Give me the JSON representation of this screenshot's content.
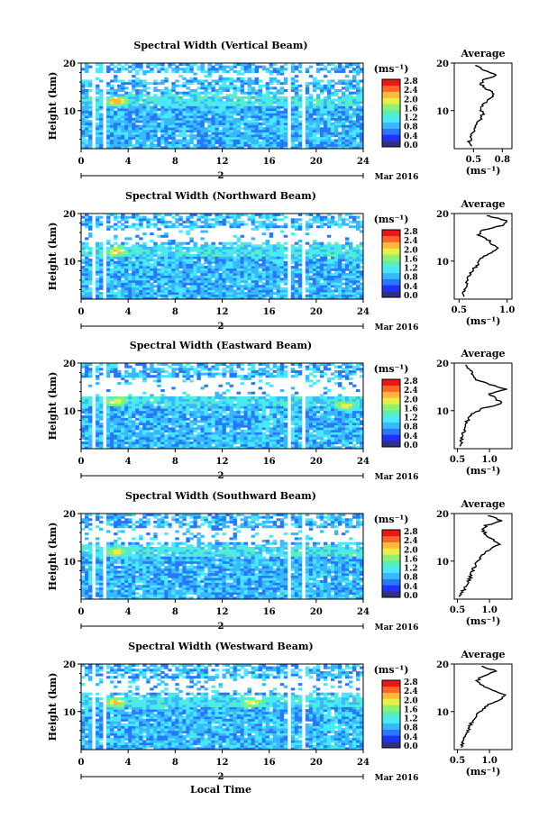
{
  "figure": {
    "date_label": "Mar 2016",
    "day_label": "2",
    "xlabel": "Local Time"
  },
  "colorbar": {
    "unit": "(ms⁻¹)",
    "ticks": [
      "0.0",
      "0.4",
      "0.8",
      "1.2",
      "1.6",
      "2.0",
      "2.4",
      "2.8"
    ],
    "colors": [
      "#303080",
      "#2030ff",
      "#2878ff",
      "#38b8ff",
      "#48e8ff",
      "#58f0b8",
      "#90f070",
      "#e8f048",
      "#ffb838",
      "#ff6428",
      "#e81818"
    ]
  },
  "chart_data": [
    {
      "type": "heatmap",
      "title": "Spectral Width (Vertical Beam)",
      "ylabel": "Height (km)",
      "xlim": [
        0,
        24
      ],
      "ylim": [
        2,
        20
      ],
      "xticks": [
        0,
        4,
        8,
        12,
        16,
        20,
        24
      ],
      "yticks": [
        10,
        20
      ],
      "gaps_hours": [
        [
          0.8,
          1.2
        ],
        [
          1.9,
          2.2
        ],
        [
          5.7,
          5.9
        ],
        [
          17.6,
          17.9
        ],
        [
          18.8,
          19.2
        ]
      ],
      "white_band_km": [
        16.5,
        18
      ],
      "hot_spots": [
        {
          "x": 3.0,
          "y": 12,
          "v": 2.6
        }
      ],
      "avg_profile": {
        "title": "Average",
        "xlabel": "(ms⁻¹)",
        "xlim": [
          0.3,
          0.9
        ],
        "xticks": [
          0.5,
          0.8
        ],
        "xtick_labels": [
          "0.5",
          "0.8"
        ],
        "ylim": [
          2,
          20
        ],
        "yticks": [
          10,
          20
        ],
        "heights": [
          2.5,
          3.5,
          4.5,
          5.5,
          6.5,
          7.5,
          8.5,
          9.5,
          10.5,
          11.5,
          12.5,
          13.5,
          14.5,
          15.5,
          16.5,
          17.5,
          18.5,
          19.5
        ],
        "values": [
          0.48,
          0.46,
          0.47,
          0.5,
          0.52,
          0.55,
          0.58,
          0.6,
          0.57,
          0.62,
          0.66,
          0.72,
          0.64,
          0.58,
          0.6,
          0.75,
          0.6,
          0.52
        ]
      }
    },
    {
      "type": "heatmap",
      "title": "Spectral Width (Northward Beam)",
      "ylabel": "Height (km)",
      "xlim": [
        0,
        24
      ],
      "ylim": [
        2,
        20
      ],
      "xticks": [
        0,
        4,
        8,
        12,
        16,
        20,
        24
      ],
      "yticks": [
        10,
        20
      ],
      "gaps_hours": [
        [
          0.8,
          1.2
        ],
        [
          1.9,
          2.2
        ],
        [
          5.7,
          5.9
        ],
        [
          17.6,
          17.9
        ],
        [
          18.8,
          19.2
        ]
      ],
      "white_band_km": [
        14,
        17
      ],
      "hot_spots": [
        {
          "x": 3.0,
          "y": 12,
          "v": 2.5
        }
      ],
      "avg_profile": {
        "title": "Average",
        "xlabel": "(ms⁻¹)",
        "xlim": [
          0.45,
          1.05
        ],
        "xticks": [
          0.5,
          1.0
        ],
        "xtick_labels": [
          "0.5",
          "1.0"
        ],
        "ylim": [
          2,
          20
        ],
        "yticks": [
          10,
          20
        ],
        "heights": [
          2.5,
          3.5,
          4.5,
          5.5,
          6.5,
          7.5,
          8.5,
          9.5,
          10.5,
          11.5,
          12.5,
          13.5,
          14.5,
          15.5,
          16.5,
          17.5,
          18.5,
          19.5
        ],
        "values": [
          0.55,
          0.54,
          0.56,
          0.58,
          0.6,
          0.62,
          0.66,
          0.7,
          0.72,
          0.8,
          0.9,
          0.85,
          0.8,
          0.7,
          0.75,
          0.95,
          1.0,
          0.8
        ]
      }
    },
    {
      "type": "heatmap",
      "title": "Spectral Width (Eastward Beam)",
      "ylabel": "Height (km)",
      "xlim": [
        0,
        24
      ],
      "ylim": [
        2,
        20
      ],
      "xticks": [
        0,
        4,
        8,
        12,
        16,
        20,
        24
      ],
      "yticks": [
        10,
        20
      ],
      "gaps_hours": [
        [
          0.8,
          1.2
        ],
        [
          1.9,
          2.2
        ],
        [
          5.7,
          5.9
        ],
        [
          17.6,
          17.9
        ],
        [
          18.8,
          19.2
        ]
      ],
      "white_band_km": [
        13,
        17
      ],
      "hot_spots": [
        {
          "x": 3.0,
          "y": 12,
          "v": 2.3
        },
        {
          "x": 22.5,
          "y": 11,
          "v": 2.2
        }
      ],
      "avg_profile": {
        "title": "Average",
        "xlabel": "(ms⁻¹)",
        "xlim": [
          0.45,
          1.35
        ],
        "xticks": [
          0.5,
          1.0
        ],
        "xtick_labels": [
          "0.5",
          "1.0"
        ],
        "ylim": [
          2,
          20
        ],
        "yticks": [
          10,
          20
        ],
        "heights": [
          2.5,
          3.5,
          4.5,
          5.5,
          6.5,
          7.5,
          8.5,
          9.5,
          10.5,
          11.5,
          12.5,
          13.5,
          14.5,
          15.5,
          16.5,
          17.5,
          18.5,
          19.5
        ],
        "values": [
          0.55,
          0.56,
          0.58,
          0.6,
          0.62,
          0.64,
          0.68,
          0.75,
          0.9,
          1.2,
          1.1,
          1.0,
          1.25,
          1.0,
          0.8,
          0.75,
          0.7,
          0.65
        ]
      }
    },
    {
      "type": "heatmap",
      "title": "Spectral Width (Southward Beam)",
      "ylabel": "Height (km)",
      "xlim": [
        0,
        24
      ],
      "ylim": [
        2,
        20
      ],
      "xticks": [
        0,
        4,
        8,
        12,
        16,
        20,
        24
      ],
      "yticks": [
        10,
        20
      ],
      "gaps_hours": [
        [
          0.8,
          1.2
        ],
        [
          1.9,
          2.2
        ],
        [
          5.7,
          5.9
        ],
        [
          17.6,
          17.9
        ],
        [
          18.8,
          19.2
        ]
      ],
      "white_band_km": [
        14,
        17
      ],
      "hot_spots": [
        {
          "x": 3.0,
          "y": 12,
          "v": 2.2
        }
      ],
      "avg_profile": {
        "title": "Average",
        "xlabel": "(ms⁻¹)",
        "xlim": [
          0.45,
          1.35
        ],
        "xticks": [
          0.5,
          1.0
        ],
        "xtick_labels": [
          "0.5",
          "1.0"
        ],
        "ylim": [
          2,
          20
        ],
        "yticks": [
          10,
          20
        ],
        "heights": [
          2.5,
          3.5,
          4.5,
          5.5,
          6.5,
          7.5,
          8.5,
          9.5,
          10.5,
          11.5,
          12.5,
          13.5,
          14.5,
          15.5,
          16.5,
          17.5,
          18.5,
          19.5
        ],
        "values": [
          0.55,
          0.58,
          0.62,
          0.66,
          0.7,
          0.72,
          0.75,
          0.8,
          0.85,
          0.9,
          1.0,
          1.15,
          1.05,
          0.95,
          0.9,
          0.95,
          1.2,
          1.0
        ]
      }
    },
    {
      "type": "heatmap",
      "title": "Spectral Width (Westward Beam)",
      "ylabel": "Height (km)",
      "xlim": [
        0,
        24
      ],
      "ylim": [
        2,
        20
      ],
      "xticks": [
        0,
        4,
        8,
        12,
        16,
        20,
        24
      ],
      "yticks": [
        10,
        20
      ],
      "gaps_hours": [
        [
          0.8,
          1.2
        ],
        [
          1.9,
          2.2
        ],
        [
          5.7,
          5.9
        ],
        [
          17.6,
          17.9
        ],
        [
          18.8,
          19.2
        ]
      ],
      "white_band_km": [
        14,
        17
      ],
      "hot_spots": [
        {
          "x": 3.0,
          "y": 12,
          "v": 2.4
        },
        {
          "x": 14.5,
          "y": 12,
          "v": 2.3
        }
      ],
      "avg_profile": {
        "title": "Average",
        "xlabel": "(ms⁻¹)",
        "xlim": [
          0.45,
          1.35
        ],
        "xticks": [
          0.5,
          1.0
        ],
        "xtick_labels": [
          "0.5",
          "1.0"
        ],
        "ylim": [
          2,
          20
        ],
        "yticks": [
          10,
          20
        ],
        "heights": [
          2.5,
          3.5,
          4.5,
          5.5,
          6.5,
          7.5,
          8.5,
          9.5,
          10.5,
          11.5,
          12.5,
          13.5,
          14.5,
          15.5,
          16.5,
          17.5,
          18.5,
          19.5
        ],
        "values": [
          0.55,
          0.58,
          0.6,
          0.64,
          0.68,
          0.72,
          0.76,
          0.8,
          0.9,
          1.0,
          1.15,
          1.25,
          1.05,
          0.9,
          0.8,
          0.9,
          1.1,
          0.9
        ]
      }
    }
  ]
}
